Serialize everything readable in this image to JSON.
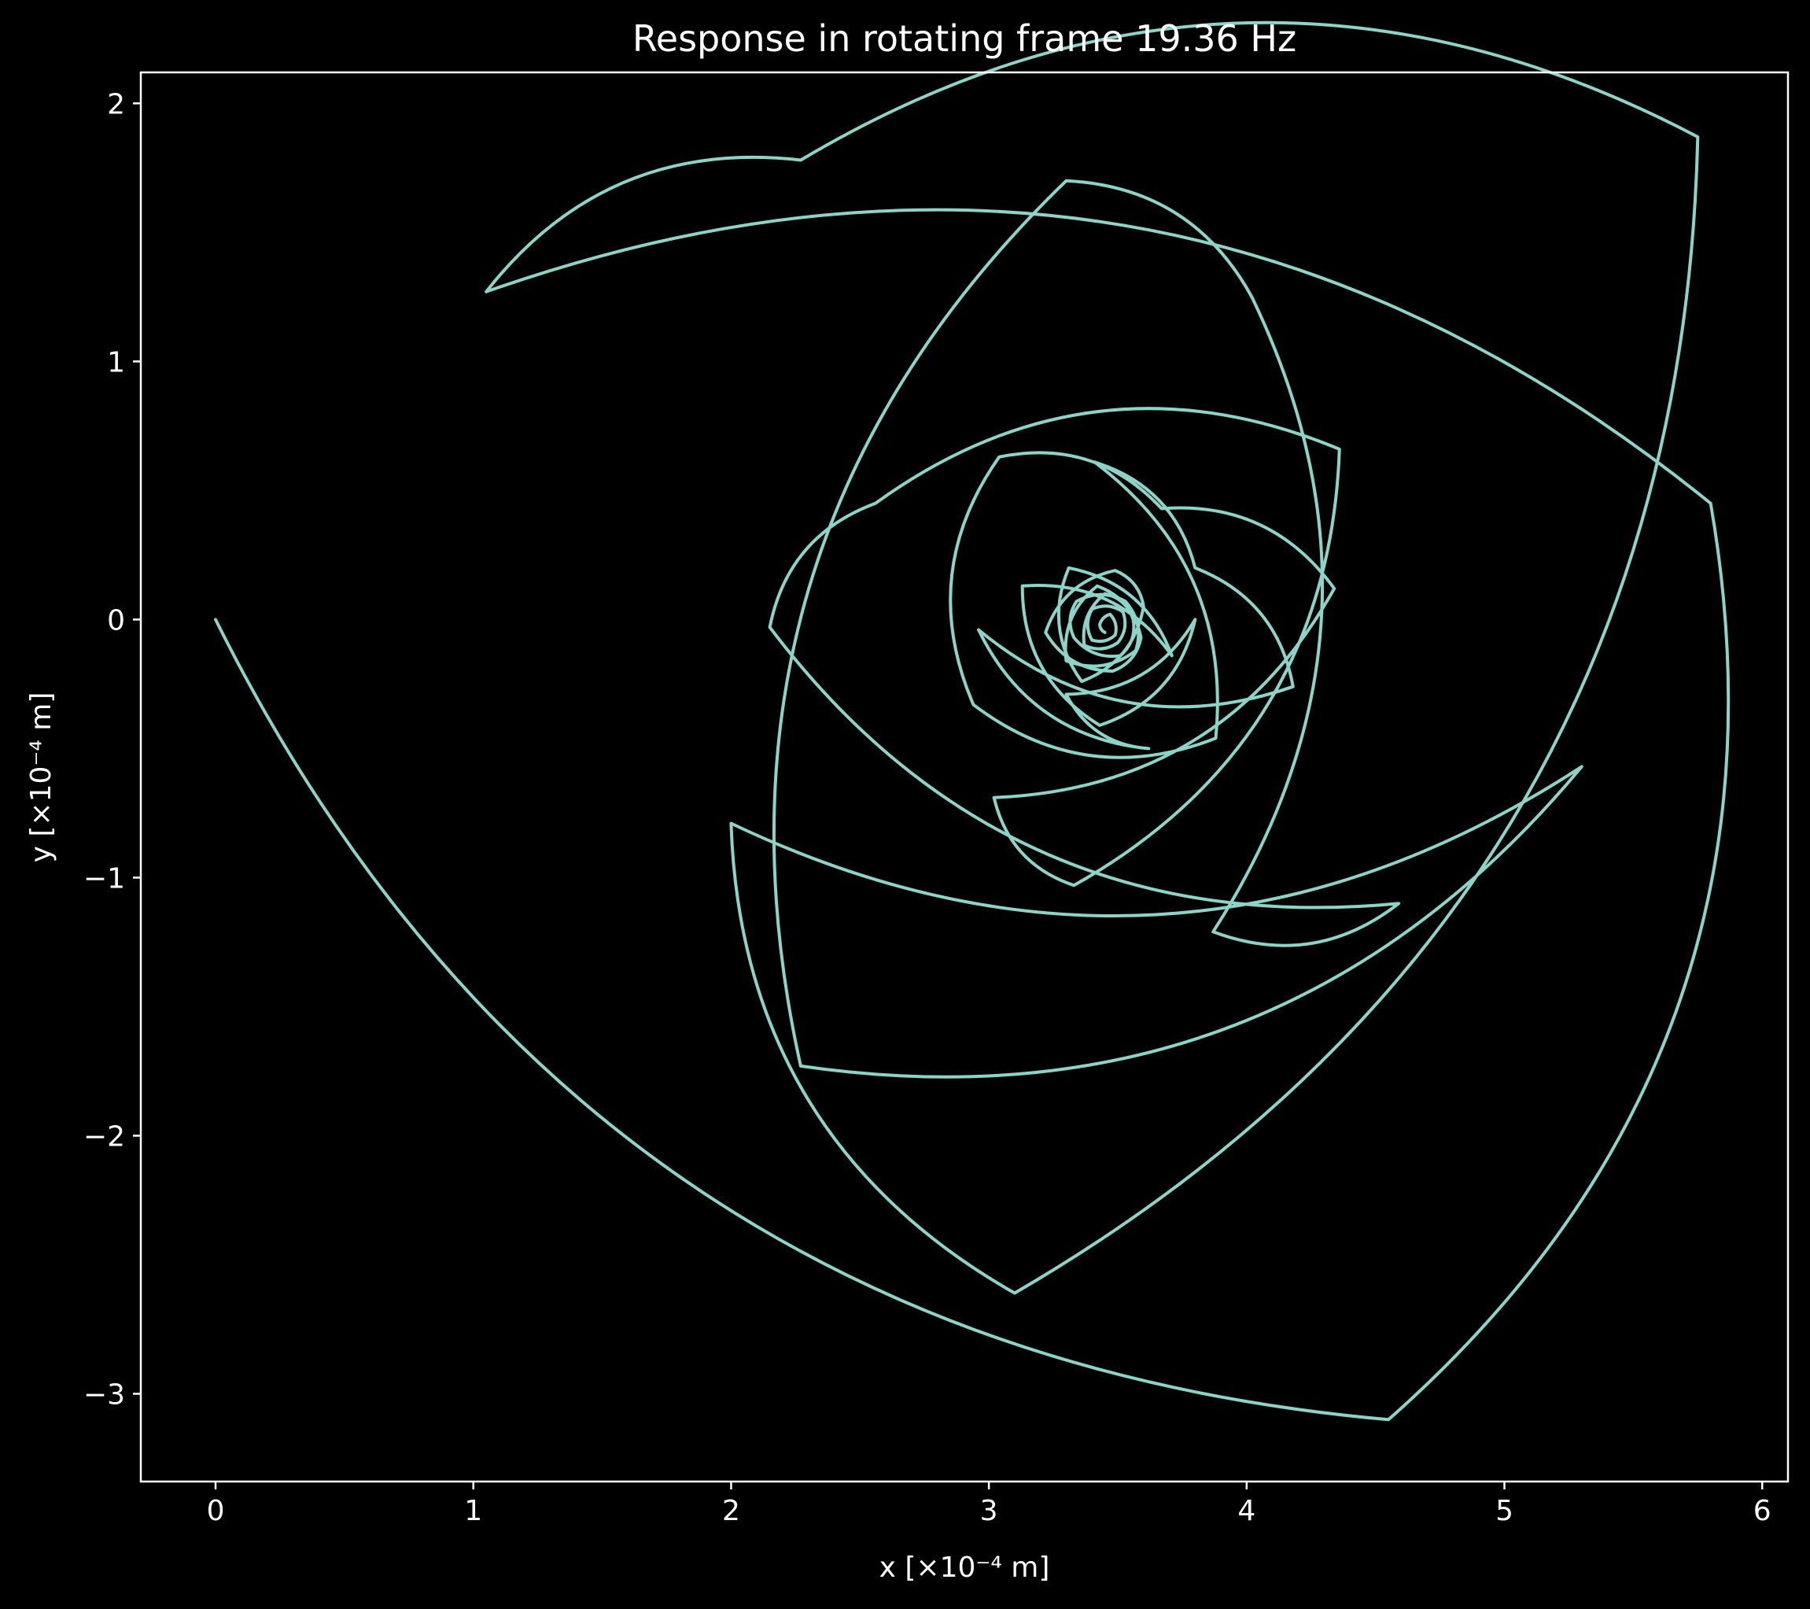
{
  "chart_data": {
    "type": "line",
    "title": "Response in rotating frame 19.36 Hz",
    "xlabel": "x [×10⁻⁴ m]",
    "ylabel": "y [×10⁻⁴ m]",
    "xlim": [
      -0.29,
      6.1
    ],
    "ylim": [
      -3.34,
      2.12
    ],
    "xticks": [
      0,
      1,
      2,
      3,
      4,
      5,
      6
    ],
    "xtick_labels": [
      "0",
      "1",
      "2",
      "3",
      "4",
      "5",
      "6"
    ],
    "yticks": [
      2,
      1,
      0,
      -1,
      -2,
      -3
    ],
    "ytick_labels": [
      "2",
      "1",
      "0",
      "−1",
      "−2",
      "−3"
    ],
    "grid": false,
    "legend": "none",
    "series": [
      {
        "color": "#8dd3c7",
        "equilibrium": [
          3.45,
          -0.05
        ],
        "cusps": [
          [
            0.0,
            0.0
          ],
          [
            4.55,
            -3.1
          ],
          [
            5.8,
            0.45
          ],
          [
            1.05,
            1.27
          ],
          [
            2.27,
            1.78
          ],
          [
            5.75,
            1.87
          ],
          [
            3.1,
            -2.61
          ],
          [
            2.0,
            -0.79
          ],
          [
            5.3,
            -0.57
          ],
          [
            2.27,
            -1.73
          ],
          [
            3.3,
            1.7
          ],
          [
            4.02,
            1.25
          ],
          [
            3.87,
            -1.21
          ],
          [
            4.59,
            -1.1
          ],
          [
            2.15,
            -0.03
          ],
          [
            2.56,
            0.45
          ],
          [
            4.36,
            0.66
          ],
          [
            3.33,
            -1.03
          ],
          [
            3.02,
            -0.69
          ],
          [
            4.34,
            0.12
          ],
          [
            3.67,
            0.43
          ],
          [
            3.04,
            0.63
          ],
          [
            2.94,
            -0.33
          ],
          [
            3.88,
            -0.46
          ],
          [
            3.41,
            0.61
          ],
          [
            3.8,
            0.2
          ],
          [
            4.18,
            -0.26
          ],
          [
            2.96,
            -0.04
          ],
          [
            3.62,
            -0.5
          ],
          [
            3.3,
            -0.29
          ],
          [
            3.8,
            0.0
          ],
          [
            3.43,
            -0.41
          ],
          [
            3.13,
            0.13
          ],
          [
            3.71,
            -0.14
          ],
          [
            3.31,
            0.2
          ],
          [
            3.36,
            -0.24
          ],
          [
            3.6,
            0.05
          ],
          [
            3.49,
            0.19
          ],
          [
            3.22,
            -0.05
          ],
          [
            3.48,
            -0.2
          ],
          [
            3.59,
            -0.07
          ],
          [
            3.42,
            0.13
          ],
          [
            3.3,
            -0.16
          ],
          [
            3.57,
            -0.12
          ],
          [
            3.53,
            0.07
          ],
          [
            3.34,
            0.07
          ],
          [
            3.33,
            -0.07
          ],
          [
            3.51,
            -0.14
          ],
          [
            3.56,
            0.0
          ],
          [
            3.45,
            0.1
          ],
          [
            3.37,
            -0.1
          ],
          [
            3.5,
            -0.09
          ],
          [
            3.52,
            0.03
          ],
          [
            3.4,
            0.04
          ],
          [
            3.4,
            -0.08
          ],
          [
            3.49,
            -0.06
          ],
          [
            3.47,
            0.02
          ],
          [
            3.43,
            -0.02
          ],
          [
            3.45,
            -0.05
          ]
        ]
      }
    ]
  }
}
